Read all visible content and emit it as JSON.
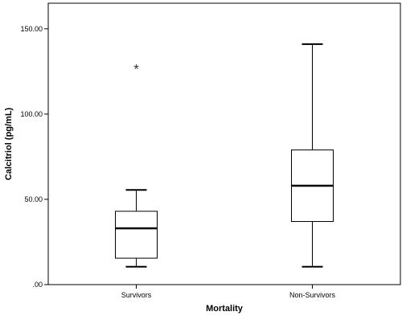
{
  "chart_data": {
    "type": "boxplot",
    "title": "",
    "xlabel": "Mortality",
    "ylabel": "Calcitriol (pg/mL)",
    "ylim": [
      0,
      165
    ],
    "yticks": [
      {
        "value": 0,
        "label": ".00"
      },
      {
        "value": 50,
        "label": "50.00"
      },
      {
        "value": 100,
        "label": "100.00"
      },
      {
        "value": 150,
        "label": "150.00"
      }
    ],
    "grid": false,
    "legend": "none",
    "categories": [
      "Survivors",
      "Non-Survivors"
    ],
    "boxes": [
      {
        "name": "Survivors",
        "min": 10.5,
        "q1": 15.5,
        "median": 33,
        "q3": 43,
        "max": 55.5,
        "outliers": [
          126.5
        ],
        "outlier_marker": "*"
      },
      {
        "name": "Non-Survivors",
        "min": 10.5,
        "q1": 37,
        "median": 58,
        "q3": 79,
        "max": 141,
        "outliers": []
      }
    ]
  }
}
